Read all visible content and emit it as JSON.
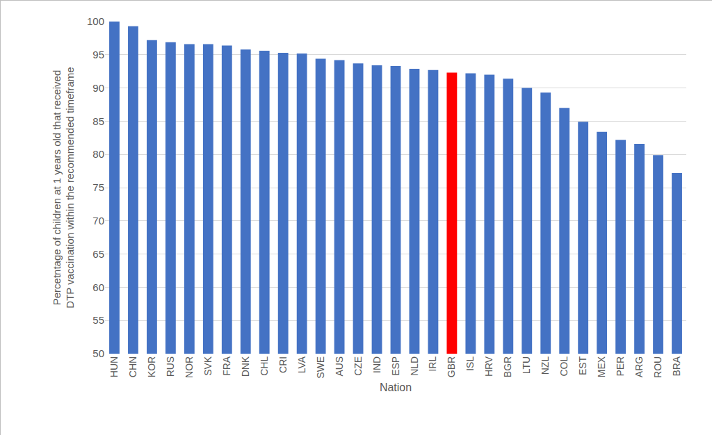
{
  "chart_data": {
    "type": "bar",
    "ylabel": [
      "Percetntage of children at 1 years old that received",
      "DTP vaccination within the recommended timeframe"
    ],
    "xlabel": "Nation",
    "categories": [
      "HUN",
      "CHN",
      "KOR",
      "RUS",
      "NOR",
      "SVK",
      "FRA",
      "DNK",
      "CHL",
      "CRI",
      "LVA",
      "SWE",
      "AUS",
      "CZE",
      "IND",
      "ESP",
      "NLD",
      "IRL",
      "GBR",
      "ISL",
      "HRV",
      "BGR",
      "LTU",
      "NZL",
      "COL",
      "EST",
      "MEX",
      "PER",
      "ARG",
      "ROU",
      "BRA"
    ],
    "values": [
      100,
      99.3,
      97.2,
      96.9,
      96.6,
      96.6,
      96.4,
      95.8,
      95.6,
      95.3,
      95.2,
      94.4,
      94.2,
      93.7,
      93.4,
      93.3,
      92.9,
      92.7,
      92.3,
      92.2,
      92.0,
      91.4,
      90.0,
      89.3,
      87.0,
      84.9,
      83.4,
      82.2,
      81.6,
      79.9,
      77.2
    ],
    "colors": [
      "#4472c4",
      "#4472c4",
      "#4472c4",
      "#4472c4",
      "#4472c4",
      "#4472c4",
      "#4472c4",
      "#4472c4",
      "#4472c4",
      "#4472c4",
      "#4472c4",
      "#4472c4",
      "#4472c4",
      "#4472c4",
      "#4472c4",
      "#4472c4",
      "#4472c4",
      "#4472c4",
      "#ff0000",
      "#4472c4",
      "#4472c4",
      "#4472c4",
      "#4472c4",
      "#4472c4",
      "#4472c4",
      "#4472c4",
      "#4472c4",
      "#4472c4",
      "#4472c4",
      "#4472c4",
      "#4472c4"
    ],
    "ylim": [
      50,
      100
    ],
    "yticks": [
      50,
      55,
      60,
      65,
      70,
      75,
      80,
      85,
      90,
      95,
      100
    ],
    "grid": true
  }
}
